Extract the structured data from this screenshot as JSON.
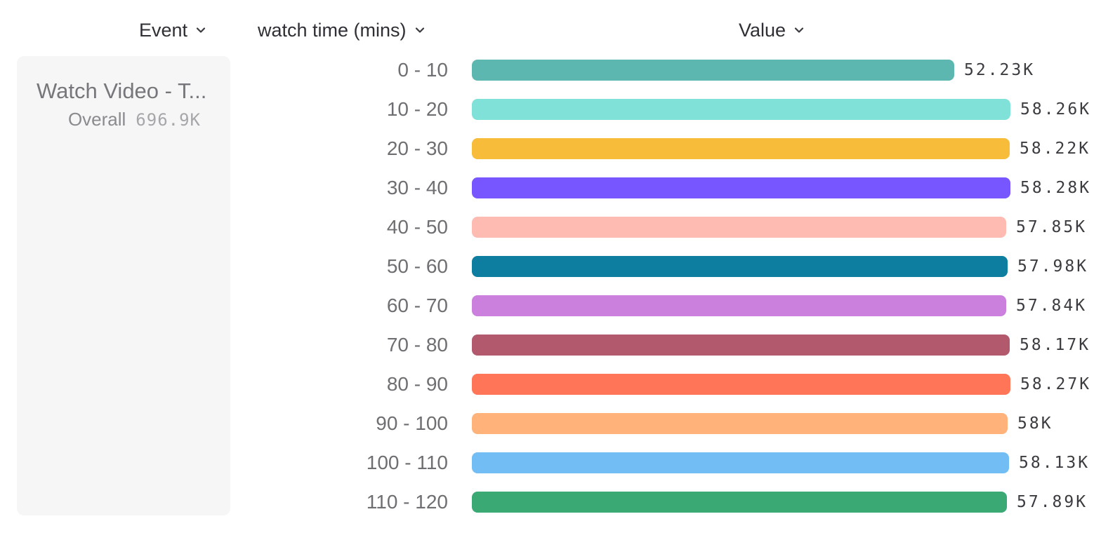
{
  "columns": {
    "event_label": "Event",
    "breakdown_label": "watch time (mins)",
    "value_label": "Value"
  },
  "event_card": {
    "title": "Watch Video - T...",
    "overall_label": "Overall",
    "overall_value": "696.9K"
  },
  "chart_data": {
    "type": "bar",
    "orientation": "horizontal",
    "title": "",
    "xlabel": "Value",
    "ylabel": "watch time (mins)",
    "xlim": [
      0,
      58280
    ],
    "grid": false,
    "categories": [
      "0 - 10",
      "10 - 20",
      "20 - 30",
      "30 - 40",
      "40 - 50",
      "50 - 60",
      "60 - 70",
      "70 - 80",
      "80 - 90",
      "90 - 100",
      "100 - 110",
      "110 - 120"
    ],
    "values": [
      52230,
      58260,
      58220,
      58280,
      57850,
      57980,
      57840,
      58170,
      58270,
      58000,
      58130,
      57890
    ],
    "value_labels": [
      "52.23K",
      "58.26K",
      "58.22K",
      "58.28K",
      "57.85K",
      "57.98K",
      "57.84K",
      "58.17K",
      "58.27K",
      "58K",
      "58.13K",
      "57.89K"
    ],
    "colors": [
      "#5BB7AF",
      "#80E1D9",
      "#F8BC3B",
      "#7856FF",
      "#FEBBB2",
      "#0D7EA0",
      "#CA80DC",
      "#B2596E",
      "#FF7557",
      "#FFB27A",
      "#72BEF4",
      "#3BA974"
    ]
  },
  "icons": {
    "chevron_down": "chevron-down"
  }
}
